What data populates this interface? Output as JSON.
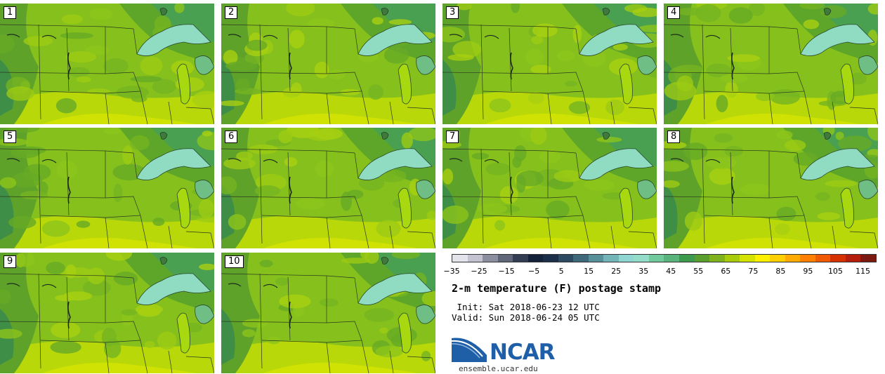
{
  "panels": [
    {
      "label": "1"
    },
    {
      "label": "2"
    },
    {
      "label": "3"
    },
    {
      "label": "4"
    },
    {
      "label": "5"
    },
    {
      "label": "6"
    },
    {
      "label": "7"
    },
    {
      "label": "8"
    },
    {
      "label": "9"
    },
    {
      "label": "10"
    }
  ],
  "colorbar": {
    "colors": [
      "#e3e3ec",
      "#c2c2d0",
      "#8a8e9e",
      "#5e6678",
      "#323d52",
      "#14233a",
      "#1c2f4a",
      "#2c4a62",
      "#3f687a",
      "#58909a",
      "#73b4b8",
      "#8ed6d2",
      "#92dcc8",
      "#72c99c",
      "#58b47a",
      "#3e9a4c",
      "#5a9e2e",
      "#7eb31e",
      "#a8cc0c",
      "#d4e200",
      "#fff000",
      "#ffd000",
      "#ffaa00",
      "#ff8000",
      "#f05a00",
      "#d63000",
      "#b61e0c",
      "#7a1a10"
    ],
    "tick_labels": [
      "−35",
      "−25",
      "−15",
      "−5",
      "5",
      "15",
      "25",
      "35",
      "45",
      "55",
      "65",
      "75",
      "85",
      "95",
      "105",
      "115"
    ]
  },
  "title": "2-m temperature (F) postage stamp",
  "init": " Init: Sat 2018-06-23 12 UTC",
  "valid": "Valid: Sun 2018-06-24 05 UTC",
  "logo_text": "NCAR",
  "url": "ensemble.ucar.edu"
}
